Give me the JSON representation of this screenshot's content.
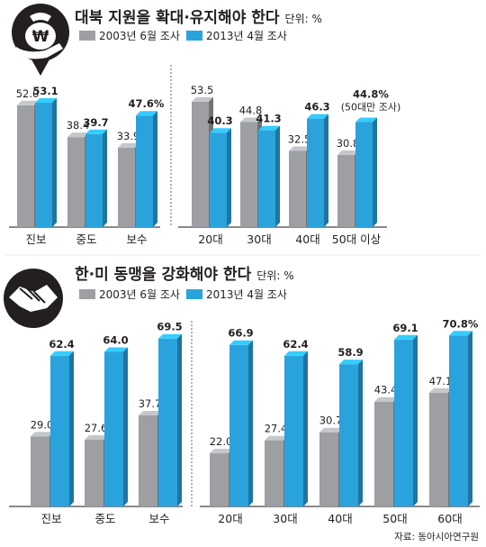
{
  "source": "자료: 동아시아연구원",
  "colors": {
    "old": "#9d9fa2",
    "new": "#2aa3dd"
  },
  "chart_data": [
    {
      "type": "bar",
      "title": "대북 지원을 확대·유지해야 한다",
      "unit": "단위: %",
      "legend": [
        "2003년 6월 조사",
        "2013년 4월 조사"
      ],
      "groups": [
        {
          "categories": [
            "진보",
            "중도",
            "보수"
          ],
          "series": [
            {
              "name": "2003년 6월 조사",
              "values": [
                52.0,
                38.4,
                33.9
              ],
              "labels": [
                "52.0",
                "38.4",
                "33.9"
              ]
            },
            {
              "name": "2013년 4월 조사",
              "values": [
                53.1,
                39.7,
                47.6
              ],
              "labels": [
                "53.1",
                "39.7",
                "47.6%"
              ]
            }
          ]
        },
        {
          "categories": [
            "20대",
            "30대",
            "40대",
            "50대 이상"
          ],
          "series": [
            {
              "name": "2003년 6월 조사",
              "values": [
                53.5,
                44.8,
                32.5,
                30.8
              ],
              "labels": [
                "53.5",
                "44.8",
                "32.5",
                "30.8"
              ]
            },
            {
              "name": "2013년 4월 조사",
              "values": [
                40.3,
                41.3,
                46.3,
                44.8
              ],
              "labels": [
                "40.3",
                "41.3",
                "46.3",
                "44.8%"
              ]
            }
          ],
          "annotation": "(50대만 조사)"
        }
      ]
    },
    {
      "type": "bar",
      "title": "한·미 동맹을 강화해야 한다",
      "unit": "단위: %",
      "legend": [
        "2003년 6월 조사",
        "2013년 4월 조사"
      ],
      "groups": [
        {
          "categories": [
            "진보",
            "중도",
            "보수"
          ],
          "series": [
            {
              "name": "2003년 6월 조사",
              "values": [
                29.0,
                27.6,
                37.7
              ],
              "labels": [
                "29.0",
                "27.6",
                "37.7"
              ]
            },
            {
              "name": "2013년 4월 조사",
              "values": [
                62.4,
                64.0,
                69.5
              ],
              "labels": [
                "62.4",
                "64.0",
                "69.5"
              ]
            }
          ]
        },
        {
          "categories": [
            "20대",
            "30대",
            "40대",
            "50대",
            "60대"
          ],
          "series": [
            {
              "name": "2003년 6월 조사",
              "values": [
                22.0,
                27.4,
                30.7,
                43.4,
                47.1
              ],
              "labels": [
                "22.0",
                "27.4",
                "30.7",
                "43.4",
                "47.1"
              ]
            },
            {
              "name": "2013년 4월 조사",
              "values": [
                66.9,
                62.4,
                58.9,
                69.1,
                70.8
              ],
              "labels": [
                "66.9",
                "62.4",
                "58.9",
                "69.1",
                "70.8%"
              ]
            }
          ]
        }
      ]
    }
  ]
}
